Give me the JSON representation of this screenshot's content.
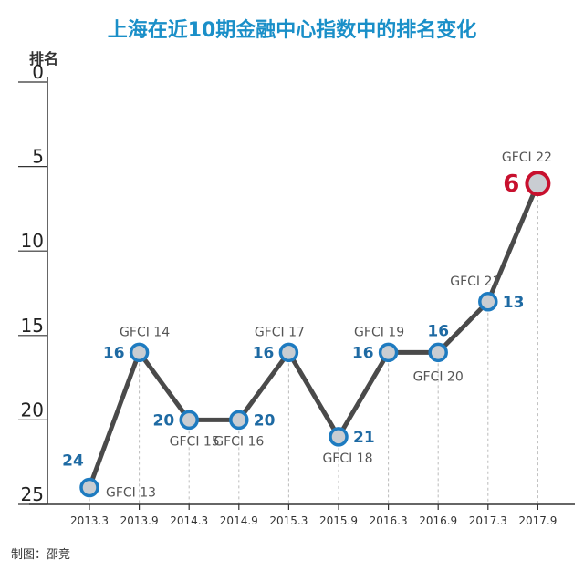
{
  "title": "上海在近10期金融中心指数中的排名变化",
  "credit": "制图：邵竞",
  "chart_data": {
    "type": "line",
    "title": "上海在近10期金融中心指数中的排名变化",
    "ylabel": "排名",
    "xlabel": "",
    "y_inverted": true,
    "ylim": [
      0,
      25
    ],
    "yticks": [
      0,
      5,
      10,
      15,
      20,
      25
    ],
    "categories": [
      "2013.3",
      "2013.9",
      "2014.3",
      "2014.9",
      "2015.3",
      "2015.9",
      "2016.3",
      "2016.9",
      "2017.3",
      "2017.9"
    ],
    "series": [
      {
        "values": [
          24,
          16,
          20,
          20,
          16,
          21,
          16,
          16,
          13,
          6
        ],
        "labels": [
          "GFCI 13",
          "GFCI 14",
          "GFCI 15",
          "GFCI 16",
          "GFCI 17",
          "GFCI 18",
          "GFCI 19",
          "GFCI 20",
          "GFCI 21",
          "GFCI 22"
        ]
      }
    ],
    "highlight_index": 9,
    "colors": {
      "line": "#4a4a4a",
      "marker_fill": "#c9cdd2",
      "marker_stroke": "#1e7bc0",
      "highlight_stroke": "#c8102e",
      "rank_text": "#1e6aa3",
      "highlight_text": "#c8102e",
      "title": "#1a8fc8"
    }
  }
}
